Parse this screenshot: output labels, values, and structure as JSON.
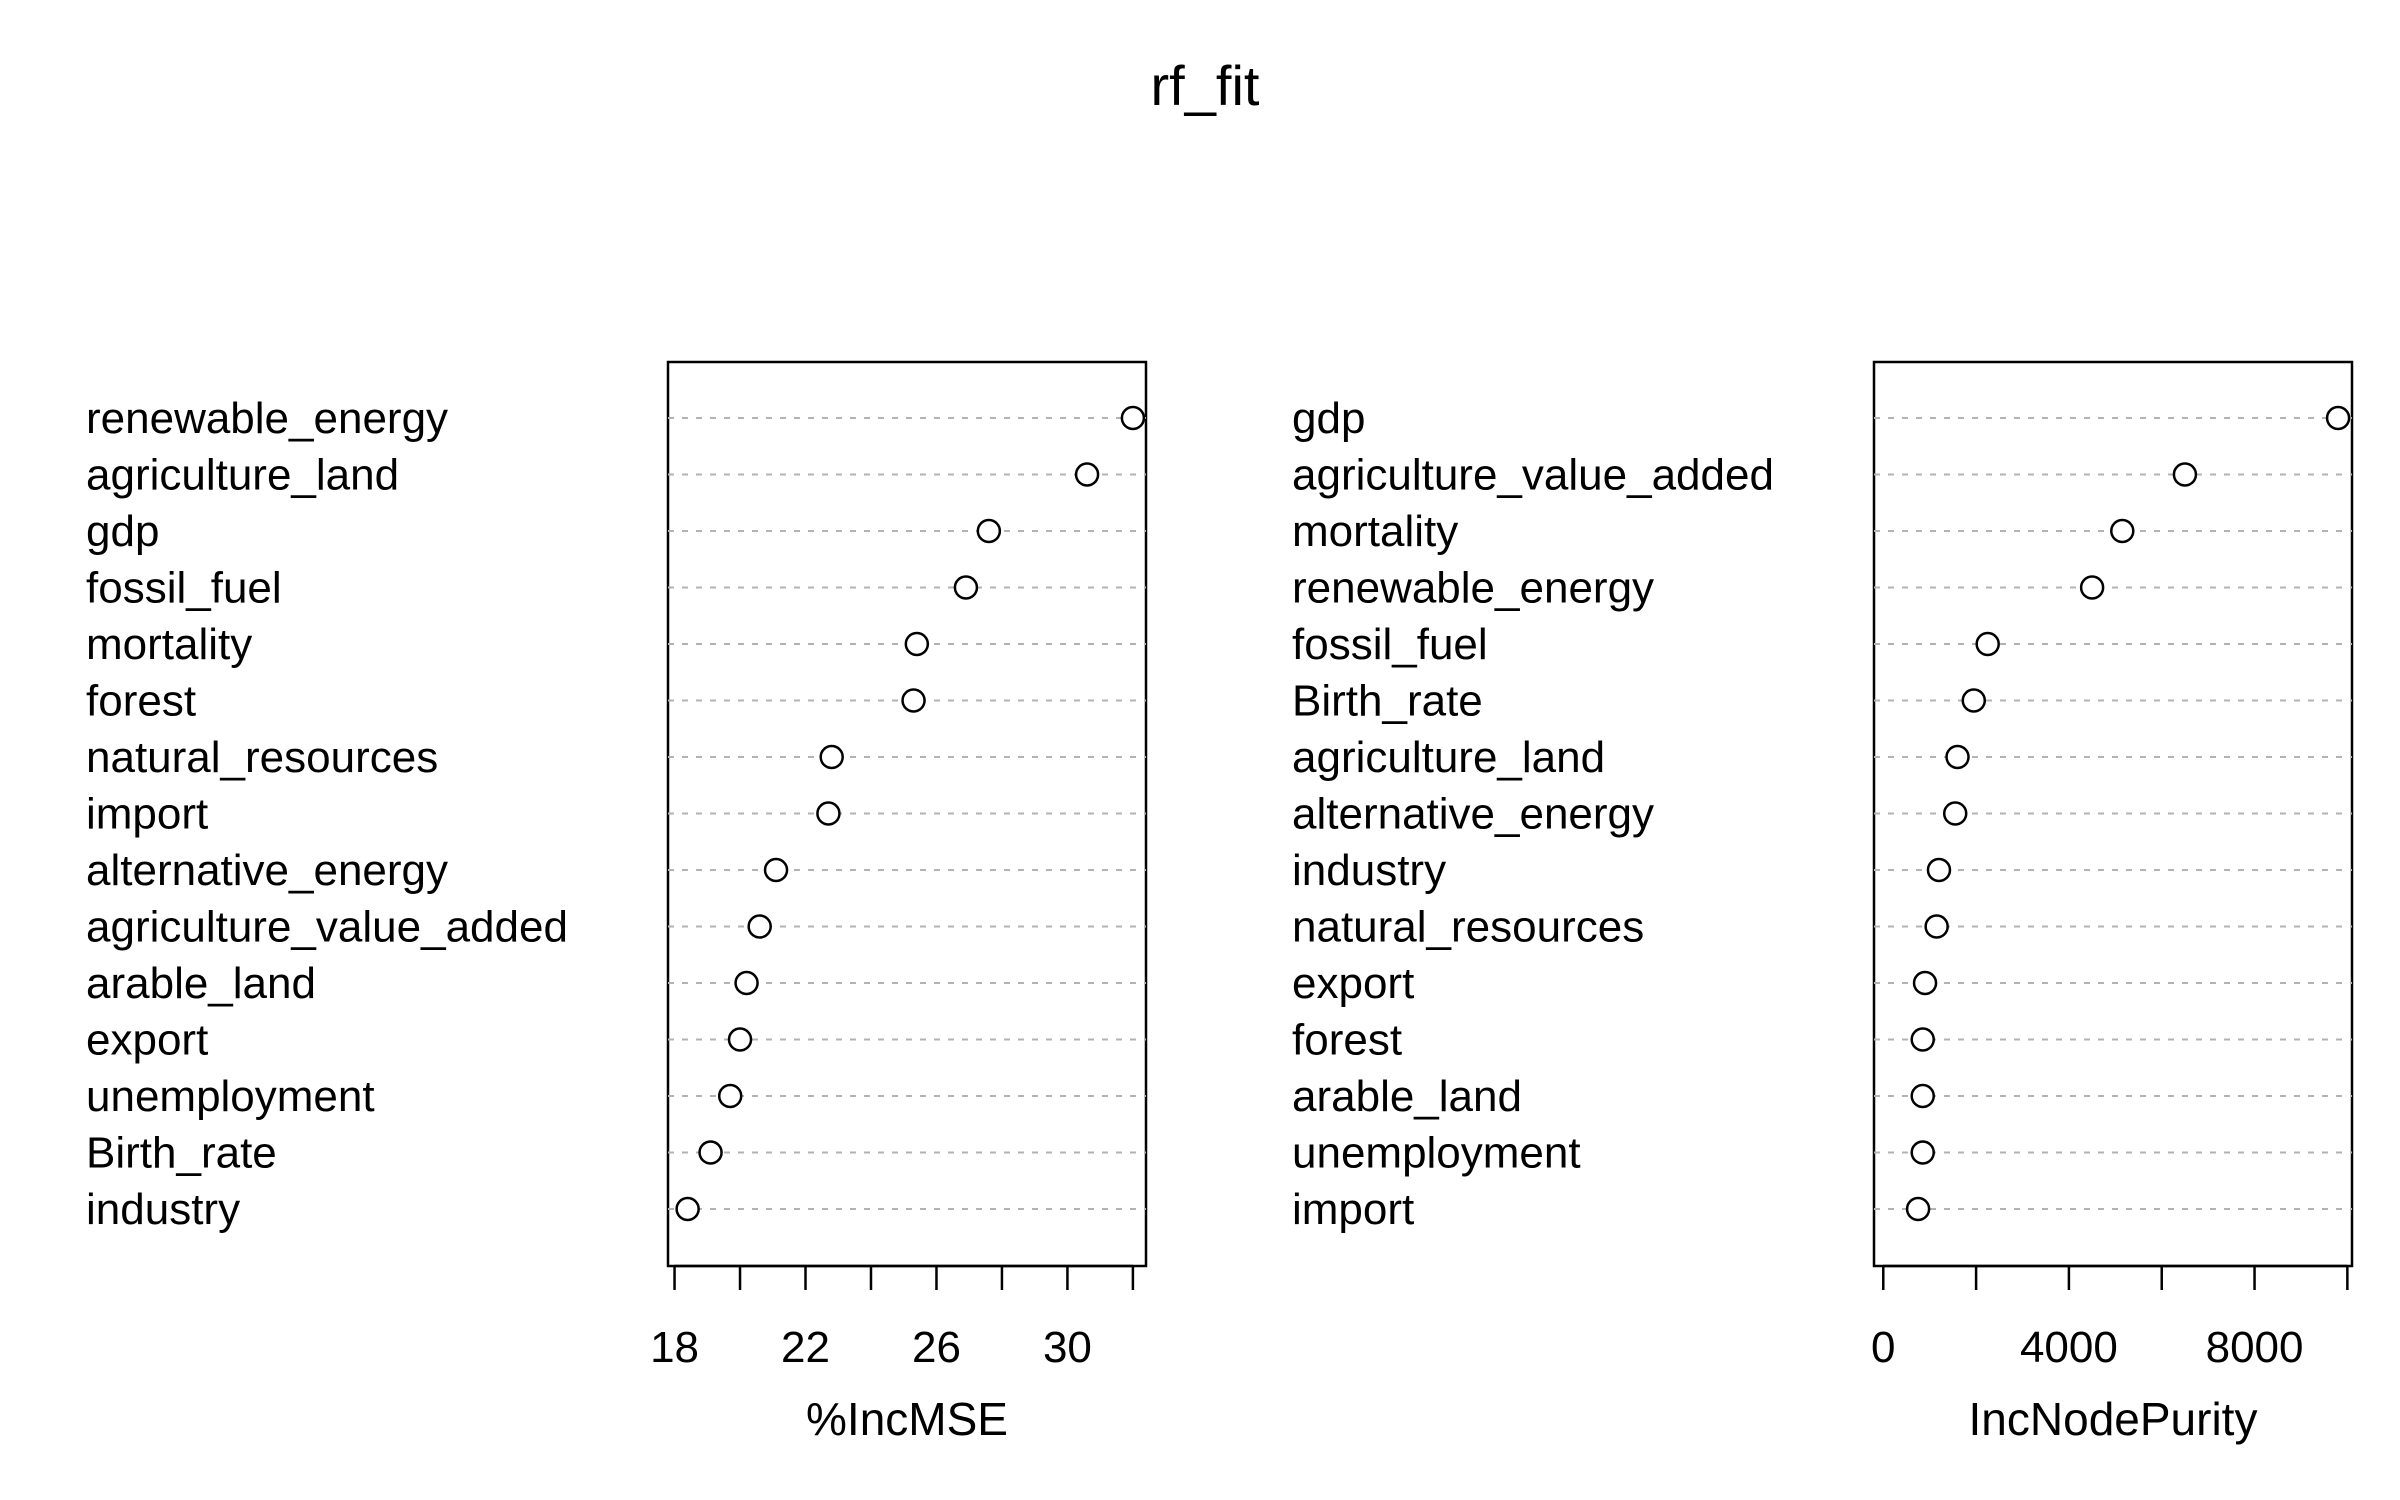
{
  "title": "rf_fit",
  "chart_data": [
    {
      "type": "scatter",
      "subtype": "dotchart",
      "xlabel": "%IncMSE",
      "xlim": [
        17.8,
        32.4
      ],
      "xticks": [
        18,
        20,
        22,
        24,
        26,
        28,
        30,
        32
      ],
      "xtick_labels": [
        "18",
        "22",
        "26",
        "30"
      ],
      "xtick_label_values": [
        18,
        22,
        26,
        30
      ],
      "grid": "dashed horizontal guides",
      "categories": [
        "renewable_energy",
        "agriculture_land",
        "gdp",
        "fossil_fuel",
        "mortality",
        "forest",
        "natural_resources",
        "import",
        "alternative_energy",
        "agriculture_value_added",
        "arable_land",
        "export",
        "unemployment",
        "Birth_rate",
        "industry"
      ],
      "values": [
        32.0,
        30.6,
        27.6,
        26.9,
        25.4,
        25.3,
        22.8,
        22.7,
        21.1,
        20.6,
        20.2,
        20.0,
        19.7,
        19.1,
        18.4
      ]
    },
    {
      "type": "scatter",
      "subtype": "dotchart",
      "xlabel": "IncNodePurity",
      "xlim": [
        -200,
        10100
      ],
      "xticks": [
        0,
        2000,
        4000,
        6000,
        8000,
        10000
      ],
      "xtick_labels": [
        "0",
        "4000",
        "8000"
      ],
      "xtick_label_values": [
        0,
        4000,
        8000
      ],
      "grid": "dashed horizontal guides",
      "categories": [
        "gdp",
        "agriculture_value_added",
        "mortality",
        "renewable_energy",
        "fossil_fuel",
        "Birth_rate",
        "agriculture_land",
        "alternative_energy",
        "industry",
        "natural_resources",
        "export",
        "forest",
        "arable_land",
        "unemployment",
        "import"
      ],
      "values": [
        9800,
        6500,
        5150,
        4500,
        2250,
        1950,
        1600,
        1550,
        1200,
        1150,
        900,
        850,
        850,
        850,
        750
      ]
    }
  ]
}
